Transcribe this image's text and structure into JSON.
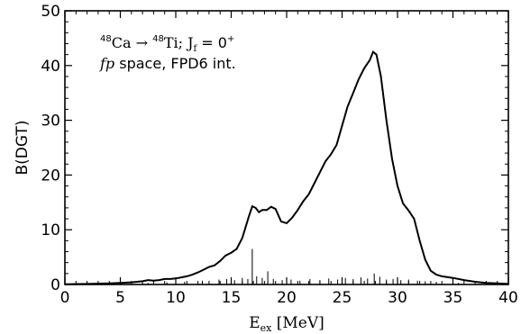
{
  "chart_data": {
    "type": "line",
    "xlabel": {
      "main": "E",
      "sub": "ex",
      "rest": " [MeV]"
    },
    "ylabel": "B(DGT)",
    "xlim": [
      0,
      40
    ],
    "ylim": [
      0,
      50
    ],
    "x_ticks": [
      0,
      5,
      10,
      15,
      20,
      25,
      30,
      35,
      40
    ],
    "y_ticks": [
      0,
      10,
      20,
      30,
      40,
      50
    ],
    "grid": false,
    "annotation": {
      "line1": {
        "sup1": "48",
        "t1": "Ca → ",
        "sup2": "48",
        "t2": "Ti; J",
        "sub": "f",
        "t3": " = 0",
        "sup3": "+"
      },
      "line2": {
        "italic": "fp",
        "rest": " space, FPD6 int."
      }
    },
    "series": [
      {
        "type": "line",
        "color": "#000000",
        "x": [
          0,
          2,
          4,
          5,
          6,
          7,
          7.5,
          8,
          8.5,
          9,
          9.5,
          10,
          10.5,
          11,
          11.5,
          12,
          12.5,
          13,
          13.5,
          14,
          14.5,
          15,
          15.5,
          16,
          16.3,
          16.6,
          16.9,
          17.2,
          17.5,
          17.8,
          18.2,
          18.6,
          19,
          19.5,
          20,
          20.5,
          21,
          21.5,
          22,
          22.5,
          23,
          23.5,
          24,
          24.5,
          25,
          25.5,
          26,
          26.5,
          27,
          27.5,
          27.8,
          28.1,
          28.5,
          29,
          29.5,
          30,
          30.5,
          31,
          31.5,
          32,
          32.5,
          33,
          33.5,
          34,
          35,
          36,
          37,
          38,
          39,
          40
        ],
        "y": [
          0.05,
          0.1,
          0.2,
          0.3,
          0.4,
          0.6,
          0.8,
          0.7,
          0.8,
          1.0,
          1.0,
          1.1,
          1.3,
          1.5,
          1.8,
          2.2,
          2.7,
          3.2,
          3.5,
          4.3,
          5.3,
          5.8,
          6.5,
          8.5,
          10.5,
          12.5,
          14.3,
          14.0,
          13.2,
          13.6,
          13.6,
          14.2,
          13.8,
          11.5,
          11.2,
          12.2,
          13.6,
          15.2,
          16.5,
          18.5,
          20.5,
          22.5,
          23.8,
          25.5,
          29.0,
          32.5,
          35.0,
          37.5,
          39.5,
          41.0,
          42.5,
          42.0,
          38.0,
          30.0,
          23.0,
          18.0,
          14.8,
          13.5,
          12.0,
          8.0,
          4.5,
          2.5,
          1.8,
          1.5,
          1.2,
          0.8,
          0.5,
          0.3,
          0.2,
          0.1
        ]
      },
      {
        "type": "spikes",
        "color": "#000000",
        "x": [
          7.5,
          9.2,
          10.8,
          12.4,
          13.9,
          14.6,
          15.3,
          16.0,
          16.5,
          16.9,
          17.3,
          17.8,
          18.3,
          18.8,
          19.6,
          20.4,
          21.2,
          22.1,
          23.0,
          23.8,
          24.6,
          25.3,
          26.0,
          26.7,
          27.3,
          27.9,
          28.4,
          29.0,
          29.6,
          30.3,
          31.0,
          31.8,
          32.5,
          33.5,
          35.5
        ],
        "y": [
          0.3,
          0.4,
          0.5,
          0.7,
          0.9,
          1.0,
          0.8,
          1.2,
          1.0,
          6.5,
          1.5,
          1.2,
          2.4,
          1.0,
          0.8,
          0.9,
          0.7,
          1.0,
          0.8,
          1.1,
          0.9,
          1.2,
          1.0,
          1.3,
          1.1,
          2.0,
          1.4,
          0.9,
          1.0,
          0.8,
          0.9,
          0.7,
          0.6,
          0.5,
          0.3
        ]
      }
    ]
  }
}
